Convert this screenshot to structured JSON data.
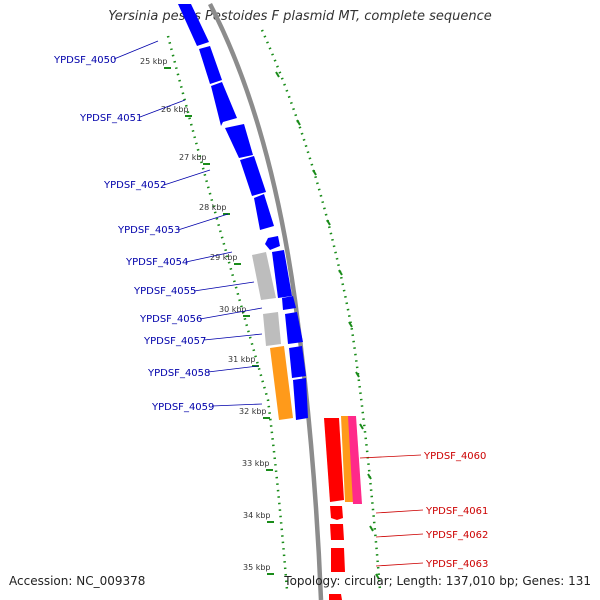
{
  "title": "Yersinia pestis Pestoides F plasmid MT, complete sequence",
  "accession": "Accession: NC_009378",
  "summary": "Topology: circular; Length: 137,010 bp; Genes: 131",
  "colors": {
    "backbone": "#8c8c8c",
    "gene_plus": "#0000ff",
    "gene_minus": "#ff0000",
    "gene_grey": "#bdbdbd",
    "gene_orange": "#ff9a1a",
    "gene_pink": "#ff2a8a",
    "tick": "#1a8c1a",
    "label_plus": "#0000aa",
    "label_minus": "#cc0000"
  },
  "kbp_ticks": [
    "25 kbp",
    "26 kbp",
    "27 kbp",
    "28 kbp",
    "29 kbp",
    "30 kbp",
    "31 kbp",
    "32 kbp",
    "33 kbp",
    "34 kbp",
    "35 kbp"
  ],
  "genes_left": [
    "YPDSF_4050",
    "YPDSF_4051",
    "YPDSF_4052",
    "YPDSF_4053",
    "YPDSF_4054",
    "YPDSF_4055",
    "YPDSF_4056",
    "YPDSF_4057",
    "YPDSF_4058",
    "YPDSF_4059"
  ],
  "genes_right": [
    "YPDSF_4060",
    "YPDSF_4061",
    "YPDSF_4062",
    "YPDSF_4063"
  ]
}
